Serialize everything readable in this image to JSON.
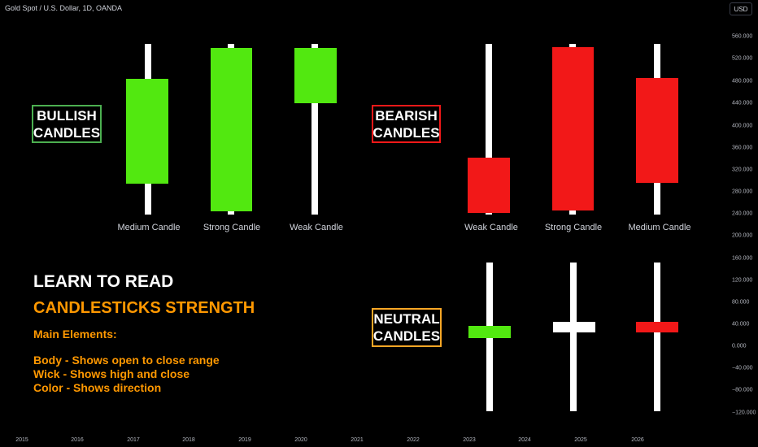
{
  "header": {
    "symbol_title": "Gold Spot / U.S. Dollar, 1D, OANDA",
    "currency": "USD"
  },
  "price_axis": [
    "560.000",
    "520.000",
    "480.000",
    "440.000",
    "400.000",
    "360.000",
    "320.000",
    "280.000",
    "240.000",
    "200.000",
    "160.000",
    "120.000",
    "80.000",
    "40.000",
    "0.000",
    "−40.000",
    "−80.000",
    "−120.000"
  ],
  "time_axis": [
    "2015",
    "2016",
    "2017",
    "2018",
    "2019",
    "2020",
    "2021",
    "2022",
    "2023",
    "2024",
    "2025",
    "2026"
  ],
  "sections": {
    "bullish": {
      "line1": "BULLISH",
      "line2": "CANDLES",
      "color": "#4caf50"
    },
    "bearish": {
      "line1": "BEARISH",
      "line2": "CANDLES",
      "color": "#f21818"
    },
    "neutral": {
      "line1": "NEUTRAL",
      "line2": "CANDLES",
      "color": "#ffa726"
    }
  },
  "candles": {
    "bullish": [
      {
        "label": "Medium Candle",
        "color": "#52e810"
      },
      {
        "label": "Strong Candle",
        "color": "#52e810"
      },
      {
        "label": "Weak Candle",
        "color": "#52e810"
      }
    ],
    "bearish": [
      {
        "label": "Weak Candle",
        "color": "#f21818"
      },
      {
        "label": "Strong Candle",
        "color": "#f21818"
      },
      {
        "label": "Medium Candle",
        "color": "#f21818"
      }
    ],
    "neutral": [
      {
        "color": "#52e810"
      },
      {
        "color": "#ffffff"
      },
      {
        "color": "#f21818"
      }
    ]
  },
  "lesson": {
    "heading": "LEARN TO READ",
    "subheading": "CANDLESTICKS STRENGTH",
    "elements_title": "Main Elements:",
    "items": [
      "Body - Shows open to close range",
      "Wick - Shows high and close",
      "Color - Shows direction"
    ],
    "accent_color": "#ff9800"
  }
}
